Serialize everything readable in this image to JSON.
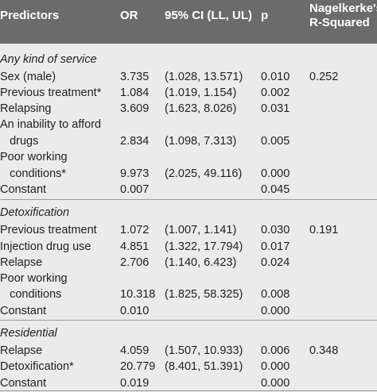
{
  "table": {
    "headers": {
      "predictors": "Predictors",
      "or": "OR",
      "ci": "95% CI (LL, UL)",
      "p": "p",
      "r2_line1": "Nagelkerke's",
      "r2_line2": "R-Squared"
    },
    "rows": [
      {
        "type": "section",
        "label": "Any kind of service"
      },
      {
        "type": "data",
        "predictor": "Sex (male)",
        "or": "3.735",
        "ci": "(1.028, 13.571)",
        "p": "0.010",
        "r2": "0.252"
      },
      {
        "type": "data",
        "predictor": "Previous treatment*",
        "or": "1.084",
        "ci": "(1.019, 1.154)",
        "p": "0.002",
        "r2": ""
      },
      {
        "type": "data",
        "predictor": "Relapsing",
        "or": "3.609",
        "ci": "(1.623, 8.026)",
        "p": "0.031",
        "r2": ""
      },
      {
        "type": "text",
        "predictor": "An inability to afford"
      },
      {
        "type": "data",
        "predictor": "   drugs",
        "or": "2.834",
        "ci": "(1.098, 7.313)",
        "p": "0.005",
        "r2": ""
      },
      {
        "type": "text",
        "predictor": "Poor working"
      },
      {
        "type": "data",
        "predictor": "   conditions*",
        "or": "9.973",
        "ci": "(2.025, 49.116)",
        "p": "0.000",
        "r2": ""
      },
      {
        "type": "data",
        "predictor": "Constant",
        "or": "0.007",
        "ci": "",
        "p": "0.045",
        "r2": ""
      },
      {
        "type": "section",
        "label": "Detoxification"
      },
      {
        "type": "data",
        "predictor": "Previous treatment",
        "or": "1.072",
        "ci": "(1.007, 1.141)",
        "p": "0.030",
        "r2": "0.191"
      },
      {
        "type": "data",
        "predictor": "Injection drug use",
        "or": "4.851",
        "ci": "(1.322, 17.794)",
        "p": "0.017",
        "r2": ""
      },
      {
        "type": "data",
        "predictor": "Relapse",
        "or": "2.706",
        "ci": "(1.140, 6.423)",
        "p": "0.024",
        "r2": ""
      },
      {
        "type": "text",
        "predictor": "Poor working"
      },
      {
        "type": "data",
        "predictor": "   conditions",
        "or": "10.318",
        "ci": "(1.825, 58.325)",
        "p": "0.008",
        "r2": ""
      },
      {
        "type": "data",
        "predictor": "Constant",
        "or": "0.010",
        "ci": "",
        "p": "0.000",
        "r2": ""
      },
      {
        "type": "section",
        "label": "Residential"
      },
      {
        "type": "data",
        "predictor": "Relapse",
        "or": "4.059",
        "ci": "(1.507, 10.933)",
        "p": "0.006",
        "r2": "0.348"
      },
      {
        "type": "data",
        "predictor": "Detoxification*",
        "or": "20.779",
        "ci": "(8.401, 51.391)",
        "p": "0.000",
        "r2": ""
      },
      {
        "type": "data",
        "predictor": "Constant",
        "or": "0.019",
        "ci": "",
        "p": "0.000",
        "r2": ""
      }
    ]
  }
}
